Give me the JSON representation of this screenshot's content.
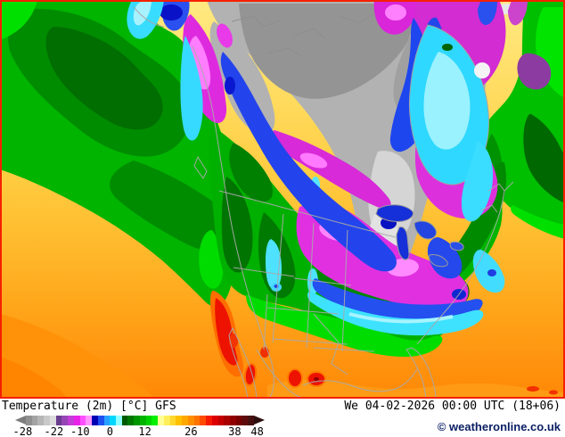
{
  "legend": {
    "title": "Temperature (2m) [°C] GFS",
    "ticks": [
      {
        "label": "-28",
        "pos_pct": 3
      },
      {
        "label": "-22",
        "pos_pct": 15.5
      },
      {
        "label": "-10",
        "pos_pct": 26
      },
      {
        "label": "0",
        "pos_pct": 38
      },
      {
        "label": "12",
        "pos_pct": 52
      },
      {
        "label": "26",
        "pos_pct": 70.5
      },
      {
        "label": "38",
        "pos_pct": 88
      },
      {
        "label": "48",
        "pos_pct": 97
      }
    ],
    "palette": [
      "#7d7d7d",
      "#909090",
      "#a3a3a3",
      "#b6b6b6",
      "#c9c9c9",
      "#dcdcdc",
      "#6a3d8f",
      "#9646b4",
      "#c33cd7",
      "#e922e9",
      "#ff50ff",
      "#ff96ff",
      "#0000b4",
      "#1e50f0",
      "#28a0ff",
      "#00d7ff",
      "#91ffff",
      "#005a00",
      "#007800",
      "#009600",
      "#00b400",
      "#00d200",
      "#00f000",
      "#ffff96",
      "#ffee5a",
      "#ffd72d",
      "#ffc000",
      "#ffa800",
      "#ff8f00",
      "#ff7300",
      "#ff4b00",
      "#f51900",
      "#dc0000",
      "#c30000",
      "#aa0000",
      "#910000",
      "#780000",
      "#5f0a0a",
      "#461010",
      "#2d0d0d"
    ]
  },
  "footer": {
    "datetime": "We 04-02-2026 00:00 UTC (18+06)",
    "copyright": "© weatheronline.co.uk",
    "copyright_color": "#0a1e64"
  },
  "map": {
    "frame_color": "#f52000"
  }
}
